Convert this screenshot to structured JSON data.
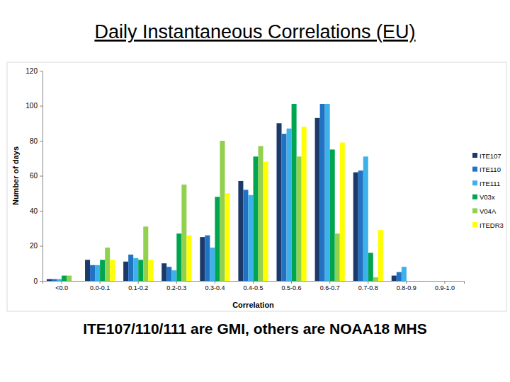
{
  "chart_data": {
    "type": "bar",
    "title": "Daily Instantaneous Correlations (EU)",
    "annotations": [
      "ITE107/110/111 are GMI, others are NOAA18 MHS"
    ],
    "x_label": "Correlation",
    "y_label": "Number of days",
    "categories": [
      "<0.0",
      "0.0-0.1",
      "0.1-0.2",
      "0.2-0.3",
      "0.3-0.4",
      "0.4-0.5",
      "0.5-0.6",
      "0.6-0.7",
      "0.7-0.8",
      "0.8-0.9",
      "0.9-1.0"
    ],
    "series": [
      {
        "name": "ITE107",
        "color": "#1b3a6b",
        "values": [
          1,
          12,
          11,
          10,
          25,
          57,
          90,
          93,
          62,
          3,
          0
        ]
      },
      {
        "name": "ITE110",
        "color": "#2272c3",
        "values": [
          1,
          9,
          15,
          8,
          26,
          52,
          84,
          101,
          63,
          5,
          0
        ]
      },
      {
        "name": "ITE111",
        "color": "#3db1ea",
        "values": [
          1,
          9,
          13,
          6,
          19,
          49,
          87,
          101,
          71,
          8,
          0
        ]
      },
      {
        "name": "V03x",
        "color": "#00a550",
        "values": [
          3,
          12,
          12,
          27,
          48,
          71,
          101,
          75,
          16,
          0,
          0
        ]
      },
      {
        "name": "V04A",
        "color": "#92d050",
        "values": [
          3,
          19,
          31,
          55,
          80,
          77,
          71,
          27,
          2,
          0,
          0
        ]
      },
      {
        "name": "ITEDR3",
        "color": "#ffff00",
        "values": [
          0,
          12,
          12,
          26,
          50,
          68,
          88,
          79,
          29,
          0,
          0
        ]
      }
    ],
    "ylim": [
      0,
      120
    ],
    "yticks": [
      0,
      20,
      40,
      60,
      80,
      100,
      120
    ],
    "grid": false,
    "legend": "right"
  }
}
